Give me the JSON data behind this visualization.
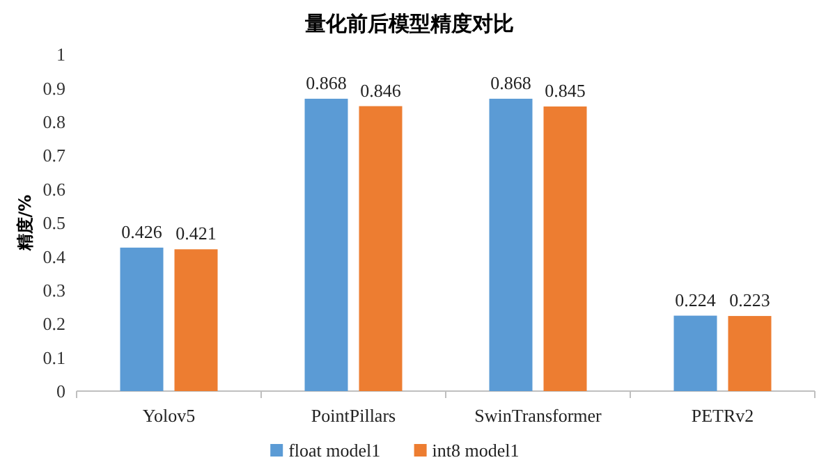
{
  "chart_data": {
    "type": "bar",
    "title": "量化前后模型精度对比",
    "ylabel": "精度/%",
    "categories": [
      "Yolov5",
      "PointPillars",
      "SwinTransformer",
      "PETRv2"
    ],
    "series": [
      {
        "name": "float model1",
        "color": "#5b9bd5",
        "values": [
          0.426,
          0.868,
          0.868,
          0.224
        ]
      },
      {
        "name": "int8 model1",
        "color": "#ed7d31",
        "values": [
          0.421,
          0.846,
          0.845,
          0.223
        ]
      }
    ],
    "ylim": [
      0,
      1
    ],
    "yticks": [
      0,
      0.1,
      0.2,
      0.3,
      0.4,
      0.5,
      0.6,
      0.7,
      0.8,
      0.9,
      1
    ],
    "grid": false,
    "legend": "bottom",
    "data_labels": true
  }
}
